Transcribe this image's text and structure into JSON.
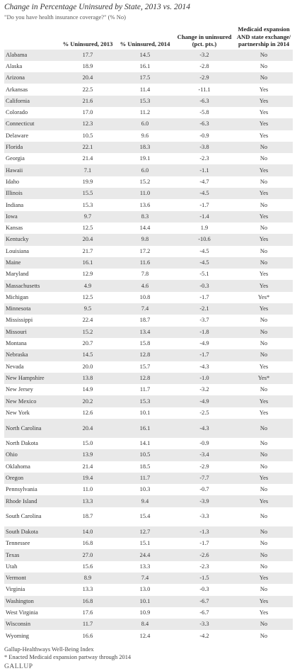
{
  "chart_data": {
    "type": "table",
    "title": "Change in Percentage Uninsured by State, 2013 vs. 2014",
    "subtitle": "\"Do you have health insurance coverage?\" (% No)",
    "columns": [
      "",
      "% Uninsured, 2013",
      "% Uninsured, 2014",
      "Change in uninsured (pct. pts.)",
      "Medicaid expansion AND state exchange/ partnership in 2014"
    ],
    "rows": [
      [
        "Alabama",
        "17.7",
        "14.5",
        "-3.2",
        "No"
      ],
      [
        "Alaska",
        "18.9",
        "16.1",
        "-2.8",
        "No"
      ],
      [
        "Arizona",
        "20.4",
        "17.5",
        "-2.9",
        "No"
      ],
      [
        "Arkansas",
        "22.5",
        "11.4",
        "-11.1",
        "Yes"
      ],
      [
        "California",
        "21.6",
        "15.3",
        "-6.3",
        "Yes"
      ],
      [
        "Colorado",
        "17.0",
        "11.2",
        "-5.8",
        "Yes"
      ],
      [
        "Connecticut",
        "12.3",
        "6.0",
        "-6.3",
        "Yes"
      ],
      [
        "Delaware",
        "10.5",
        "9.6",
        "-0.9",
        "Yes"
      ],
      [
        "Florida",
        "22.1",
        "18.3",
        "-3.8",
        "No"
      ],
      [
        "Georgia",
        "21.4",
        "19.1",
        "-2.3",
        "No"
      ],
      [
        "Hawaii",
        "7.1",
        "6.0",
        "-1.1",
        "Yes"
      ],
      [
        "Idaho",
        "19.9",
        "15.2",
        "-4.7",
        "No"
      ],
      [
        "Illinois",
        "15.5",
        "11.0",
        "-4.5",
        "Yes"
      ],
      [
        "Indiana",
        "15.3",
        "13.6",
        "-1.7",
        "No"
      ],
      [
        "Iowa",
        "9.7",
        "8.3",
        "-1.4",
        "Yes"
      ],
      [
        "Kansas",
        "12.5",
        "14.4",
        "1.9",
        "No"
      ],
      [
        "Kentucky",
        "20.4",
        "9.8",
        "-10.6",
        "Yes"
      ],
      [
        "Louisiana",
        "21.7",
        "17.2",
        "-4.5",
        "No"
      ],
      [
        "Maine",
        "16.1",
        "11.6",
        "-4.5",
        "No"
      ],
      [
        "Maryland",
        "12.9",
        "7.8",
        "-5.1",
        "Yes"
      ],
      [
        "Massachusetts",
        "4.9",
        "4.6",
        "-0.3",
        "Yes"
      ],
      [
        "Michigan",
        "12.5",
        "10.8",
        "-1.7",
        "Yes*"
      ],
      [
        "Minnesota",
        "9.5",
        "7.4",
        "-2.1",
        "Yes"
      ],
      [
        "Mississippi",
        "22.4",
        "18.7",
        "-3.7",
        "No"
      ],
      [
        "Missouri",
        "15.2",
        "13.4",
        "-1.8",
        "No"
      ],
      [
        "Montana",
        "20.7",
        "15.8",
        "-4.9",
        "No"
      ],
      [
        "Nebraska",
        "14.5",
        "12.8",
        "-1.7",
        "No"
      ],
      [
        "Nevada",
        "20.0",
        "15.7",
        "-4.3",
        "Yes"
      ],
      [
        "New Hampshire",
        "13.8",
        "12.8",
        "-1.0",
        "Yes*"
      ],
      [
        "New Jersey",
        "14.9",
        "11.7",
        "-3.2",
        "No"
      ],
      [
        "New Mexico",
        "20.2",
        "15.3",
        "-4.9",
        "Yes"
      ],
      [
        "New York",
        "12.6",
        "10.1",
        "-2.5",
        "Yes"
      ],
      [
        "North Carolina",
        "20.4",
        "16.1",
        "-4.3",
        "No"
      ],
      [
        "North Dakota",
        "15.0",
        "14.1",
        "-0.9",
        "No"
      ],
      [
        "Ohio",
        "13.9",
        "10.5",
        "-3.4",
        "No"
      ],
      [
        "Oklahoma",
        "21.4",
        "18.5",
        "-2.9",
        "No"
      ],
      [
        "Oregon",
        "19.4",
        "11.7",
        "-7.7",
        "Yes"
      ],
      [
        "Pennsylvania",
        "11.0",
        "10.3",
        "-0.7",
        "No"
      ],
      [
        "Rhode Island",
        "13.3",
        "9.4",
        "-3.9",
        "Yes"
      ],
      [
        "South Carolina",
        "18.7",
        "15.4",
        "-3.3",
        "No"
      ],
      [
        "South Dakota",
        "14.0",
        "12.7",
        "-1.3",
        "No"
      ],
      [
        "Tennessee",
        "16.8",
        "15.1",
        "-1.7",
        "No"
      ],
      [
        "Texas",
        "27.0",
        "24.4",
        "-2.6",
        "No"
      ],
      [
        "Utah",
        "15.6",
        "13.3",
        "-2.3",
        "No"
      ],
      [
        "Vermont",
        "8.9",
        "7.4",
        "-1.5",
        "Yes"
      ],
      [
        "Virginia",
        "13.3",
        "13.0",
        "-0.3",
        "No"
      ],
      [
        "Washington",
        "16.8",
        "10.1",
        "-6.7",
        "Yes"
      ],
      [
        "West Virginia",
        "17.6",
        "10.9",
        "-6.7",
        "Yes"
      ],
      [
        "Wisconsin",
        "11.7",
        "8.4",
        "-3.3",
        "No"
      ],
      [
        "Wyoming",
        "16.6",
        "12.4",
        "-4.2",
        "No"
      ]
    ]
  },
  "footer": {
    "source": "Gallup-Healthways Well-Being Index",
    "note": "* Enacted Medicaid expansion partway through 2014",
    "logo": "GALLUP"
  }
}
